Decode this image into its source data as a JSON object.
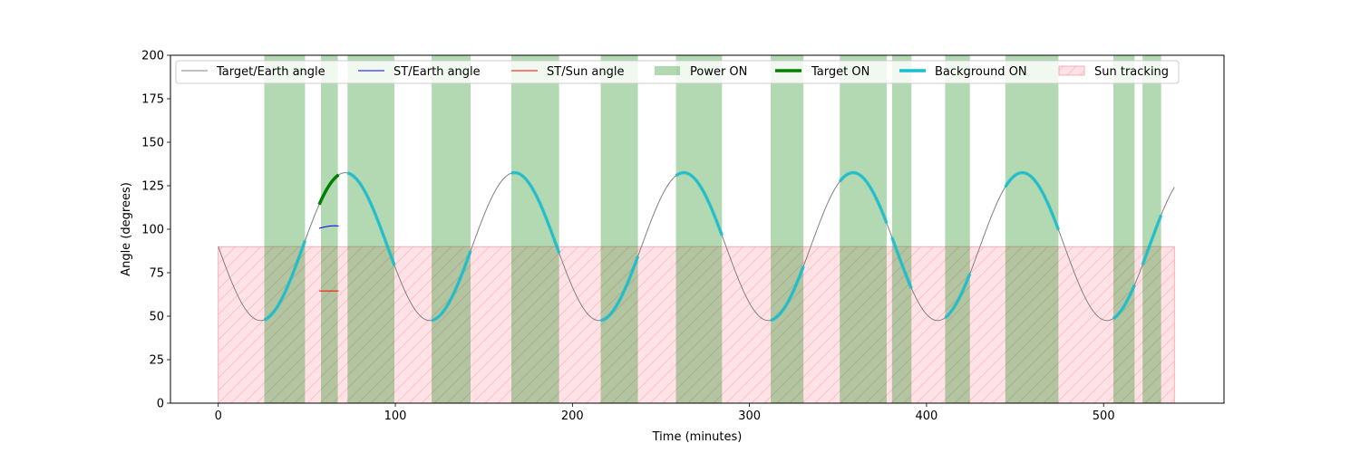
{
  "chart_data": {
    "type": "line",
    "title": "",
    "xlabel": "Time (minutes)",
    "ylabel": "Angle (degrees)",
    "xlim": [
      -27,
      568
    ],
    "ylim": [
      0,
      200
    ],
    "xticks": [
      0,
      100,
      200,
      300,
      400,
      500
    ],
    "yticks": [
      0,
      25,
      50,
      75,
      100,
      125,
      150,
      175,
      200
    ],
    "grid": false,
    "legend_position": "top",
    "target_earth_model": {
      "center": 90,
      "amplitude": 42.5,
      "period_min": 95.6,
      "phase_min_at": 23.9,
      "range": [
        0,
        540
      ]
    },
    "series": [
      {
        "name": "Target/Earth angle",
        "color": "#808080",
        "style": "thin-line"
      },
      {
        "name": "ST/Earth angle",
        "color": "#0000ff",
        "style": "thin-line",
        "points": [
          [
            57,
            100.5
          ],
          [
            60,
            101.3
          ],
          [
            63,
            101.8
          ],
          [
            66,
            102
          ],
          [
            68,
            101.8
          ]
        ]
      },
      {
        "name": "ST/Sun angle",
        "color": "#ff0000",
        "style": "thin-line",
        "points": [
          [
            57,
            64.5
          ],
          [
            68,
            64.5
          ]
        ]
      },
      {
        "name": "Power ON",
        "color": "#008000",
        "style": "span",
        "intervals": [
          [
            26,
            49
          ],
          [
            58,
            67.5
          ],
          [
            73,
            99.5
          ],
          [
            120.5,
            142.5
          ],
          [
            165.5,
            192.5
          ],
          [
            216,
            237
          ],
          [
            258.5,
            284.5
          ],
          [
            312,
            330.5
          ],
          [
            351,
            377.5
          ],
          [
            380.5,
            391.5
          ],
          [
            410.5,
            424.5
          ],
          [
            444.5,
            474.5
          ],
          [
            505.5,
            517.5
          ],
          [
            522,
            532.5
          ]
        ]
      },
      {
        "name": "Target ON",
        "color": "#008000",
        "style": "thick-line",
        "intervals": [
          [
            57,
            68
          ]
        ]
      },
      {
        "name": "Background ON",
        "color": "#17becf",
        "style": "thick-line",
        "intervals": [
          [
            26,
            49
          ],
          [
            73,
            99.5
          ],
          [
            120.5,
            142.5
          ],
          [
            165.5,
            192.5
          ],
          [
            216,
            237
          ],
          [
            258.5,
            284.5
          ],
          [
            312,
            330.5
          ],
          [
            351,
            377.5
          ],
          [
            380.5,
            391.5
          ],
          [
            410.5,
            424.5
          ],
          [
            444.5,
            474.5
          ],
          [
            505.5,
            517.5
          ],
          [
            522,
            532.5
          ]
        ]
      },
      {
        "name": "Sun tracking",
        "color": "#ffb6c1",
        "style": "hatched-span",
        "x_range": [
          0,
          540
        ],
        "y_range": [
          0,
          90
        ]
      }
    ]
  }
}
